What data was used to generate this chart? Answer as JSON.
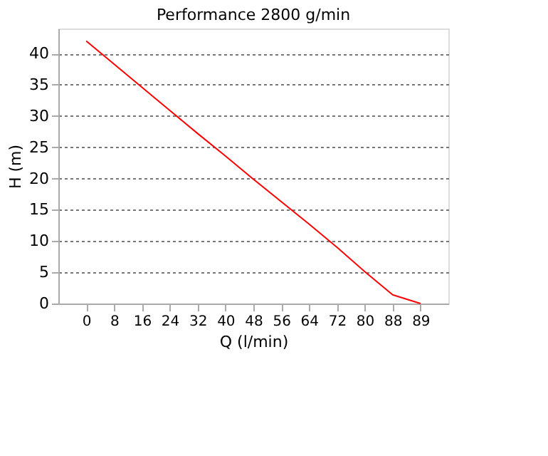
{
  "chart_data": {
    "type": "line",
    "title": "Performance  2800 g/min",
    "xlabel": "Q (l/min)",
    "ylabel": "H (m)",
    "categories": [
      "0",
      "8",
      "16",
      "24",
      "32",
      "40",
      "48",
      "56",
      "64",
      "72",
      "80",
      "88",
      "89"
    ],
    "series": [
      {
        "color": "#ff0000",
        "values": [
          42,
          38.3,
          34.6,
          30.9,
          27.2,
          23.6,
          19.9,
          16.3,
          12.7,
          9.0,
          5.1,
          1.4,
          0
        ]
      }
    ],
    "ylim": [
      0,
      44
    ],
    "yticks": [
      0,
      5,
      10,
      15,
      20,
      25,
      30,
      35,
      40
    ],
    "grid": "y",
    "line_style": "solid",
    "legend": false
  }
}
